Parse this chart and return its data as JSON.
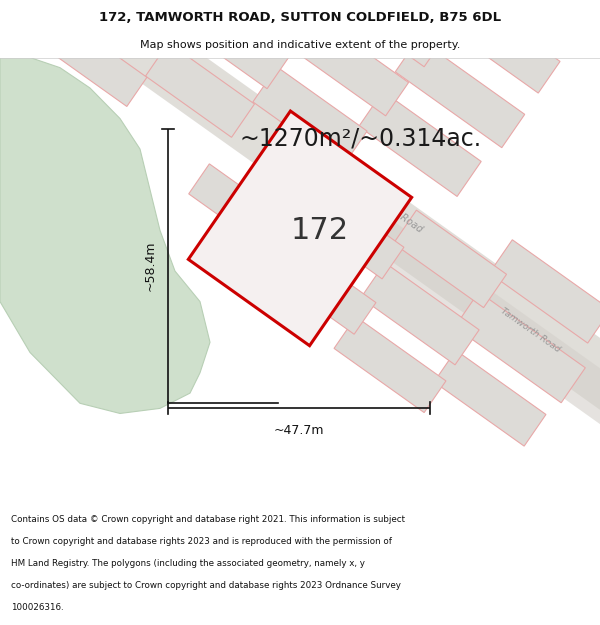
{
  "title_line1": "172, TAMWORTH ROAD, SUTTON COLDFIELD, B75 6DL",
  "title_line2": "Map shows position and indicative extent of the property.",
  "area_text": "~1270m²/~0.314ac.",
  "label_172": "172",
  "dim_width": "~47.7m",
  "dim_height": "~58.4m",
  "road_label": "Tamworth Road",
  "footer_lines": [
    "Contains OS data © Crown copyright and database right 2021. This information is subject",
    "to Crown copyright and database rights 2023 and is reproduced with the permission of",
    "HM Land Registry. The polygons (including the associated geometry, namely x, y",
    "co-ordinates) are subject to Crown copyright and database rights 2023 Ordnance Survey",
    "100026316."
  ],
  "bg_color": "#edecea",
  "plot_fill": "#f5f0f0",
  "plot_edge": "#cc0000",
  "parcel_fill": "#dddbd7",
  "parcel_edge": "#e8a8a8",
  "road_strip_fill": "#d4d0ca",
  "green_fill": "#cfe0cc",
  "green_edge": "#b8cfb5",
  "white_bg": "#ffffff",
  "dim_color": "#111111",
  "text_color": "#111111",
  "road_text_color": "#999999"
}
